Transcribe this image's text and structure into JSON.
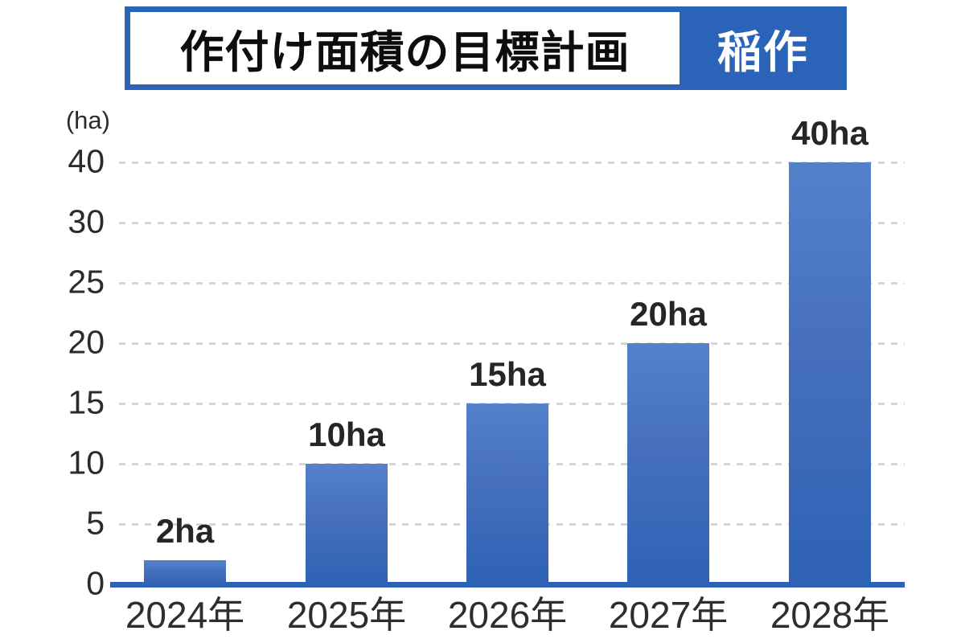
{
  "title": {
    "main": "作付け面積の目標計画",
    "badge": "稲作"
  },
  "colors": {
    "brand_blue": "#2a63b8",
    "bar_gradient_top": "#5581cb",
    "bar_gradient_bottom": "#2e62b5",
    "axis_line": "#2e62b5",
    "gridline": "#d6d6d6",
    "text_dark": "#262626"
  },
  "chart_data": {
    "type": "bar",
    "title": "作付け面積の目標計画",
    "subtitle_badge": "稲作",
    "unit_label": "(ha)",
    "categories": [
      "2024年",
      "2025年",
      "2026年",
      "2027年",
      "2028年"
    ],
    "values": [
      2,
      10,
      15,
      20,
      40
    ],
    "value_labels": [
      "2ha",
      "10ha",
      "15ha",
      "20ha",
      "40ha"
    ],
    "yticks": [
      0,
      5,
      10,
      15,
      20,
      25,
      30,
      40
    ],
    "ylabel": "(ha)",
    "axis_note": "y-axis ticks evenly spaced; top interval jumps 30→40",
    "grid": "horizontal-dashed",
    "legend": "none"
  }
}
